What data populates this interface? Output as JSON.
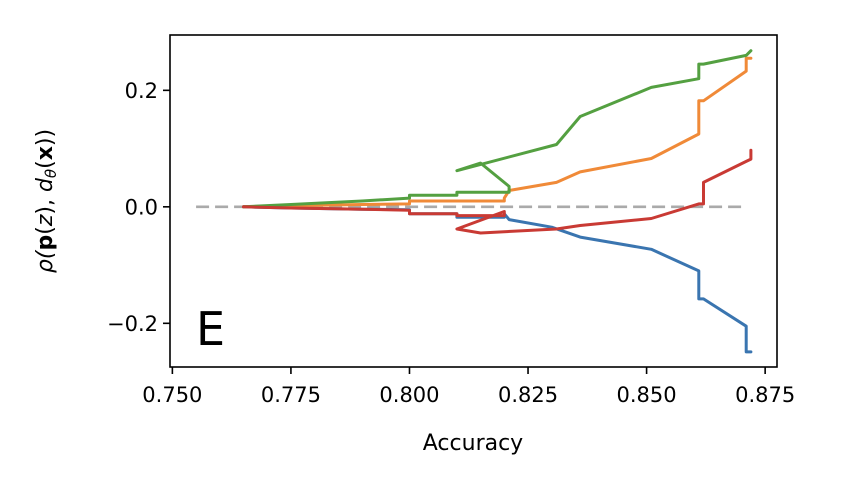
{
  "chart_data": {
    "type": "line",
    "title": "",
    "xlabel": "Accuracy",
    "ylabel": "ρ(p(z), dθ(x))",
    "ylabel_parts": [
      {
        "text": "ρ(",
        "style": "italic"
      },
      {
        "text": "p",
        "style": "bold"
      },
      {
        "text": "(",
        "style": "normal"
      },
      {
        "text": "z",
        "style": "italic"
      },
      {
        "text": "), ",
        "style": "normal"
      },
      {
        "text": "d",
        "style": "italic"
      },
      {
        "text": "θ",
        "style": "sub-italic"
      },
      {
        "text": "(",
        "style": "normal"
      },
      {
        "text": "x",
        "style": "bold"
      },
      {
        "text": "))",
        "style": "normal"
      }
    ],
    "panel_label": "E",
    "xlim": [
      0.7495,
      0.8775
    ],
    "ylim": [
      -0.275,
      0.295
    ],
    "xticks": [
      0.75,
      0.775,
      0.8,
      0.825,
      0.85,
      0.875
    ],
    "xtick_labels": [
      "0.750",
      "0.775",
      "0.800",
      "0.825",
      "0.850",
      "0.875"
    ],
    "yticks": [
      -0.2,
      0.0,
      0.2
    ],
    "ytick_labels": [
      "−0.2",
      "0.0",
      "0.2"
    ],
    "grid": false,
    "legend": "none",
    "reference_line": {
      "y": 0.0,
      "style": "dashed",
      "color": "#aaaaaa"
    },
    "series": [
      {
        "color": "#3a75b0",
        "x": [
          0.765,
          0.775,
          0.79,
          0.8,
          0.8,
          0.81,
          0.81,
          0.82,
          0.82,
          0.821,
          0.83,
          0.836,
          0.851,
          0.861,
          0.861,
          0.862,
          0.871,
          0.871,
          0.872
        ],
        "y": [
          0.0,
          -0.002,
          -0.004,
          -0.005,
          -0.012,
          -0.012,
          -0.018,
          -0.018,
          -0.012,
          -0.022,
          -0.035,
          -0.052,
          -0.073,
          -0.11,
          -0.158,
          -0.158,
          -0.205,
          -0.249,
          -0.249
        ]
      },
      {
        "color": "#f08a38",
        "x": [
          0.765,
          0.775,
          0.79,
          0.8,
          0.8,
          0.81,
          0.82,
          0.82,
          0.821,
          0.831,
          0.836,
          0.851,
          0.861,
          0.861,
          0.862,
          0.871,
          0.871,
          0.872
        ],
        "y": [
          0.0,
          0.002,
          0.004,
          0.005,
          0.01,
          0.01,
          0.01,
          0.015,
          0.028,
          0.042,
          0.06,
          0.083,
          0.125,
          0.182,
          0.182,
          0.233,
          0.255,
          0.255
        ]
      },
      {
        "color": "#54a041",
        "x": [
          0.765,
          0.775,
          0.79,
          0.8,
          0.8,
          0.81,
          0.81,
          0.821,
          0.821,
          0.815,
          0.81,
          0.831,
          0.836,
          0.851,
          0.861,
          0.861,
          0.862,
          0.871,
          0.872
        ],
        "y": [
          0.0,
          0.004,
          0.01,
          0.015,
          0.02,
          0.02,
          0.025,
          0.025,
          0.035,
          0.075,
          0.062,
          0.107,
          0.155,
          0.205,
          0.22,
          0.245,
          0.245,
          0.26,
          0.268
        ]
      },
      {
        "color": "#c93a34",
        "x": [
          0.765,
          0.775,
          0.79,
          0.8,
          0.8,
          0.81,
          0.81,
          0.82,
          0.82,
          0.81,
          0.815,
          0.831,
          0.836,
          0.851,
          0.861,
          0.862,
          0.862,
          0.871,
          0.872,
          0.872
        ],
        "y": [
          0.0,
          -0.002,
          -0.004,
          -0.006,
          -0.012,
          -0.012,
          -0.015,
          -0.015,
          -0.008,
          -0.038,
          -0.045,
          -0.038,
          -0.032,
          -0.02,
          0.005,
          0.005,
          0.042,
          0.078,
          0.082,
          0.097
        ]
      }
    ]
  }
}
